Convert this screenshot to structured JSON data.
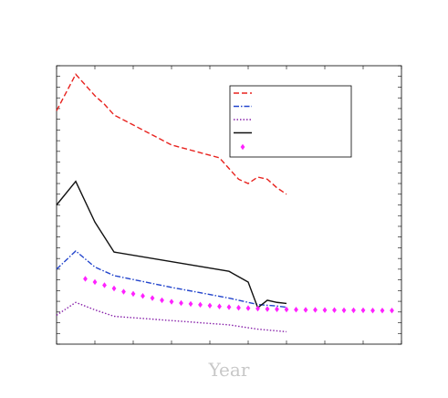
{
  "chart_data": {
    "type": "line",
    "title": "",
    "xlabel": "Year",
    "ylabel": "",
    "xlim": [
      1964,
      2000
    ],
    "ylim": [
      0,
      13
    ],
    "xticks": [
      1964,
      1968,
      1972,
      1976,
      1980,
      1984,
      1988,
      1992,
      1996,
      2000
    ],
    "xtick_labels": [
      "",
      "",
      "",
      "",
      "",
      "",
      "",
      "",
      "",
      ""
    ],
    "yticks": [
      0,
      0.5,
      1,
      1.5,
      2,
      2.5,
      3,
      3.5,
      4,
      4.5,
      5,
      5.5,
      6,
      6.5,
      7,
      7.5,
      8,
      8.5,
      9,
      9.5,
      10,
      10.5,
      11,
      11.5,
      12,
      12.5,
      13
    ],
    "ytick_labels": [
      "",
      "",
      "",
      "",
      "",
      "",
      "",
      "",
      "",
      "",
      "",
      "",
      "",
      "",
      "",
      "",
      "",
      "",
      "",
      "",
      "",
      "",
      "",
      "",
      "",
      "",
      ""
    ],
    "grid": false,
    "legend_position": "top-right",
    "series": [
      {
        "name": "",
        "style": "dashed",
        "color": "#e8231f",
        "x": [
          1964,
          1966,
          1968,
          1969,
          1970,
          1976,
          1981,
          1982,
          1983,
          1984,
          1985,
          1986,
          1987,
          1988
        ],
        "y": [
          10.9,
          12.6,
          11.6,
          11.2,
          10.7,
          9.3,
          8.7,
          8.2,
          7.7,
          7.5,
          7.8,
          7.7,
          7.3,
          7.0
        ]
      },
      {
        "name": "",
        "style": "dashdot",
        "color": "#2244cc",
        "x": [
          1964,
          1966,
          1968,
          1970,
          1976,
          1982,
          1985,
          1987,
          1988
        ],
        "y": [
          3.5,
          4.35,
          3.6,
          3.2,
          2.65,
          2.15,
          1.85,
          1.78,
          1.72
        ]
      },
      {
        "name": "",
        "style": "dotted",
        "color": "#8822aa",
        "x": [
          1964,
          1966,
          1968,
          1970,
          1976,
          1982,
          1985,
          1987,
          1988
        ],
        "y": [
          1.35,
          1.95,
          1.6,
          1.3,
          1.1,
          0.9,
          0.7,
          0.62,
          0.58
        ]
      },
      {
        "name": "",
        "style": "solid",
        "color": "#111111",
        "x": [
          1964,
          1966,
          1968,
          1970,
          1982,
          1984,
          1985,
          1986,
          1987,
          1988
        ],
        "y": [
          6.5,
          7.6,
          5.7,
          4.3,
          3.4,
          2.9,
          1.7,
          2.05,
          1.95,
          1.9
        ]
      },
      {
        "name": "",
        "style": "markers",
        "color": "#ff22ff",
        "x": [
          1967,
          1968,
          1969,
          1970,
          1971,
          1972,
          1973,
          1974,
          1975,
          1976,
          1977,
          1978,
          1979,
          1980,
          1981,
          1982,
          1983,
          1984,
          1985,
          1986,
          1987,
          1988,
          1989,
          1990,
          1991,
          1992,
          1993,
          1994,
          1995,
          1996,
          1997,
          1998,
          1999
        ],
        "y": [
          3.05,
          2.9,
          2.75,
          2.6,
          2.45,
          2.35,
          2.25,
          2.15,
          2.05,
          1.98,
          1.92,
          1.88,
          1.84,
          1.8,
          1.76,
          1.73,
          1.7,
          1.68,
          1.66,
          1.64,
          1.63,
          1.62,
          1.61,
          1.6,
          1.6,
          1.59,
          1.59,
          1.58,
          1.58,
          1.58,
          1.57,
          1.57,
          1.57
        ]
      }
    ]
  }
}
